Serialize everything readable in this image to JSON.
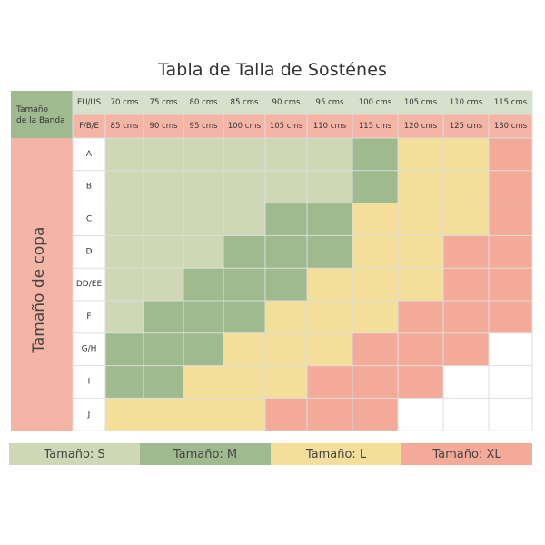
{
  "title": "Tabla de Talla de Sosténes",
  "chart_data": {
    "type": "table",
    "title": "Tabla de Talla de Sosténes",
    "header_corner_label": "Tamaño de la Banda",
    "row_axis_label": "Tamaño de copa",
    "band_sizes": [
      {
        "system": "EU/US",
        "values": [
          "70 cms",
          "75 cms",
          "80 cms",
          "85 cms",
          "90 cms",
          "95 cms",
          "100 cms",
          "105 cms",
          "110 cms",
          "115 cms"
        ]
      },
      {
        "system": "F/B/E",
        "values": [
          "85 cms",
          "90 cms",
          "95 cms",
          "100 cms",
          "105 cms",
          "110 cms",
          "115 cms",
          "120 cms",
          "125 cms",
          "130 cms"
        ]
      }
    ],
    "cups": [
      "A",
      "B",
      "C",
      "D",
      "DD/EE",
      "F",
      "G/H",
      "I",
      "J"
    ],
    "size_codes": [
      "S",
      "M",
      "L",
      "XL"
    ],
    "grid": [
      [
        "S",
        "S",
        "S",
        "S",
        "S",
        "S",
        "M",
        "L",
        "L",
        "XL"
      ],
      [
        "S",
        "S",
        "S",
        "S",
        "S",
        "S",
        "M",
        "L",
        "L",
        "XL"
      ],
      [
        "S",
        "S",
        "S",
        "S",
        "M",
        "M",
        "L",
        "L",
        "L",
        "XL"
      ],
      [
        "S",
        "S",
        "S",
        "M",
        "M",
        "M",
        "L",
        "L",
        "XL",
        "XL"
      ],
      [
        "S",
        "S",
        "M",
        "M",
        "M",
        "L",
        "L",
        "L",
        "XL",
        "XL"
      ],
      [
        "S",
        "M",
        "M",
        "M",
        "L",
        "L",
        "L",
        "XL",
        "XL",
        "XL"
      ],
      [
        "M",
        "M",
        "M",
        "L",
        "L",
        "L",
        "XL",
        "XL",
        "XL",
        ""
      ],
      [
        "M",
        "M",
        "L",
        "L",
        "L",
        "XL",
        "XL",
        "XL",
        "",
        ""
      ],
      [
        "L",
        "L",
        "L",
        "L",
        "XL",
        "XL",
        "XL",
        "",
        "",
        ""
      ]
    ],
    "legend": [
      {
        "code": "S",
        "label": "Tamaño: S",
        "color": "#cfd8b6"
      },
      {
        "code": "M",
        "label": "Tamaño: M",
        "color": "#9fba8f"
      },
      {
        "code": "L",
        "label": "Tamaño: L",
        "color": "#f3df9a"
      },
      {
        "code": "XL",
        "label": "Tamaño: XL",
        "color": "#f4aa98"
      }
    ],
    "colors": {
      "header_green": "#9fba8f",
      "band_row1_bg": "#d6e1cd",
      "band_row2_bg": "#f4b5a6",
      "cup_column_bg": "#f4b5a6",
      "empty": "#ffffff",
      "grid_line": "#dddddd"
    }
  }
}
